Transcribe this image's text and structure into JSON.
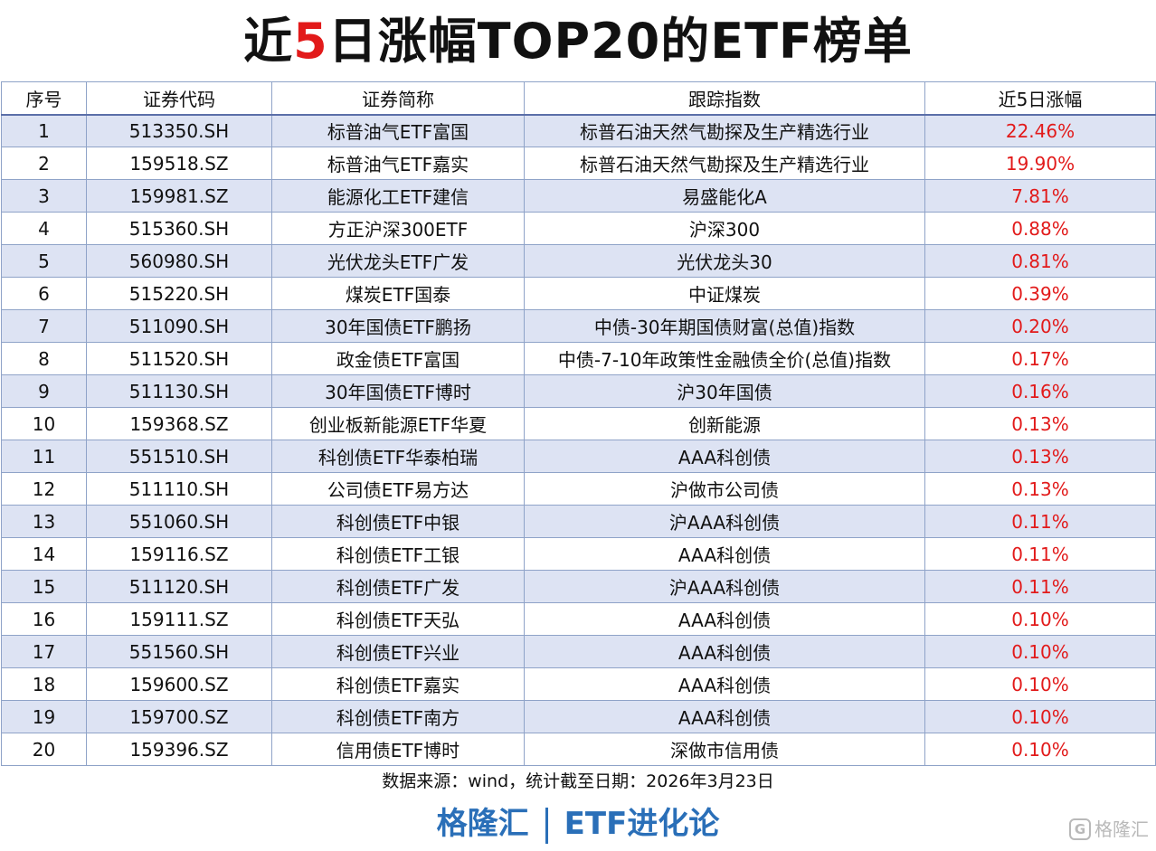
{
  "title": {
    "before": "近",
    "highlight": "5",
    "after": "日涨幅TOP20的ETF榜单"
  },
  "columns": [
    "序号",
    "证券代码",
    "证券简称",
    "跟踪指数",
    "近5日涨幅"
  ],
  "rows": [
    {
      "no": "1",
      "code": "513350.SH",
      "name": "标普油气ETF富国",
      "index": "标普石油天然气勘探及生产精选行业",
      "change": "22.46%"
    },
    {
      "no": "2",
      "code": "159518.SZ",
      "name": "标普油气ETF嘉实",
      "index": "标普石油天然气勘探及生产精选行业",
      "change": "19.90%"
    },
    {
      "no": "3",
      "code": "159981.SZ",
      "name": "能源化工ETF建信",
      "index": "易盛能化A",
      "change": "7.81%"
    },
    {
      "no": "4",
      "code": "515360.SH",
      "name": "方正沪深300ETF",
      "index": "沪深300",
      "change": "0.88%"
    },
    {
      "no": "5",
      "code": "560980.SH",
      "name": "光伏龙头ETF广发",
      "index": "光伏龙头30",
      "change": "0.81%"
    },
    {
      "no": "6",
      "code": "515220.SH",
      "name": "煤炭ETF国泰",
      "index": "中证煤炭",
      "change": "0.39%"
    },
    {
      "no": "7",
      "code": "511090.SH",
      "name": "30年国债ETF鹏扬",
      "index": "中债-30年期国债财富(总值)指数",
      "change": "0.20%"
    },
    {
      "no": "8",
      "code": "511520.SH",
      "name": "政金债ETF富国",
      "index": "中债-7-10年政策性金融债全价(总值)指数",
      "change": "0.17%"
    },
    {
      "no": "9",
      "code": "511130.SH",
      "name": "30年国债ETF博时",
      "index": "沪30年国债",
      "change": "0.16%"
    },
    {
      "no": "10",
      "code": "159368.SZ",
      "name": "创业板新能源ETF华夏",
      "index": "创新能源",
      "change": "0.13%"
    },
    {
      "no": "11",
      "code": "551510.SH",
      "name": "科创债ETF华泰柏瑞",
      "index": "AAA科创债",
      "change": "0.13%"
    },
    {
      "no": "12",
      "code": "511110.SH",
      "name": "公司债ETF易方达",
      "index": "沪做市公司债",
      "change": "0.13%"
    },
    {
      "no": "13",
      "code": "551060.SH",
      "name": "科创债ETF中银",
      "index": "沪AAA科创债",
      "change": "0.11%"
    },
    {
      "no": "14",
      "code": "159116.SZ",
      "name": "科创债ETF工银",
      "index": "AAA科创债",
      "change": "0.11%"
    },
    {
      "no": "15",
      "code": "511120.SH",
      "name": "科创债ETF广发",
      "index": "沪AAA科创债",
      "change": "0.11%"
    },
    {
      "no": "16",
      "code": "159111.SZ",
      "name": "科创债ETF天弘",
      "index": "AAA科创债",
      "change": "0.10%"
    },
    {
      "no": "17",
      "code": "551560.SH",
      "name": "科创债ETF兴业",
      "index": "AAA科创债",
      "change": "0.10%"
    },
    {
      "no": "18",
      "code": "159600.SZ",
      "name": "科创债ETF嘉实",
      "index": "AAA科创债",
      "change": "0.10%"
    },
    {
      "no": "19",
      "code": "159700.SZ",
      "name": "科创债ETF南方",
      "index": "AAA科创债",
      "change": "0.10%"
    },
    {
      "no": "20",
      "code": "159396.SZ",
      "name": "信用债ETF博时",
      "index": "深做市信用债",
      "change": "0.10%"
    }
  ],
  "source": "数据来源：wind，统计截至日期：2026年3月23日",
  "brand": {
    "left": "格隆汇",
    "right": "ETF进化论"
  },
  "watermark": "格隆汇",
  "colors": {
    "accent_red": "#e21a1a",
    "brand_blue": "#2a6fb8",
    "stripe": "#dde3f3",
    "border": "#8fa3c8"
  }
}
